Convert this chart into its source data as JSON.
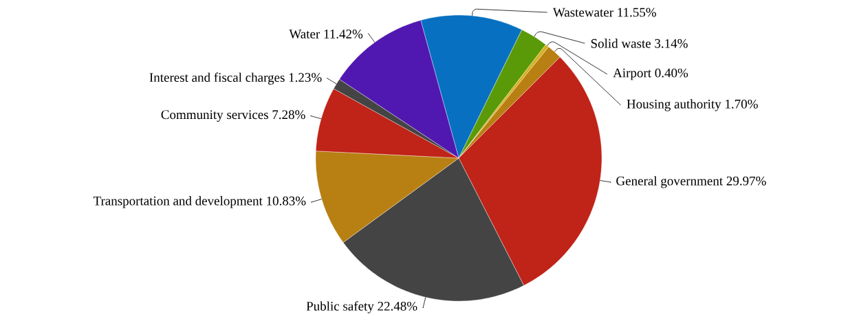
{
  "chart_data": {
    "type": "pie",
    "categories": [
      "Wastewater",
      "Solid waste",
      "Airport",
      "Housing authority",
      "General government",
      "Public safety",
      "Transportation and development",
      "Community services",
      "Interest and fiscal charges",
      "Water"
    ],
    "values": [
      11.55,
      3.14,
      0.4,
      1.7,
      29.97,
      22.48,
      10.83,
      7.28,
      1.23,
      11.42
    ],
    "value_labels": [
      "11.55%",
      "3.14%",
      "0.40%",
      "1.70%",
      "29.97%",
      "22.48%",
      "10.83%",
      "7.28%",
      "1.23%",
      "11.42%"
    ],
    "colors": [
      "#0870c0",
      "#5a9a08",
      "#d8b020",
      "#b88012",
      "#c02318",
      "#444444",
      "#b88012",
      "#c02318",
      "#444444",
      "#5018b0"
    ]
  }
}
